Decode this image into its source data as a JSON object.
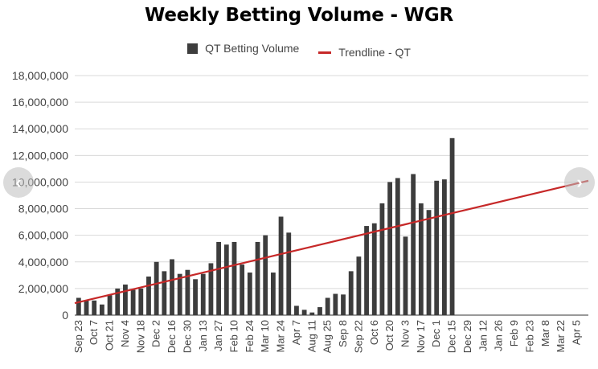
{
  "chart_data": {
    "type": "bar",
    "title": "Weekly Betting Volume - WGR",
    "legend": {
      "placement": "top",
      "entries": [
        {
          "name": "QT Betting Volume",
          "color": "#3d3d3d",
          "kind": "bar"
        },
        {
          "name": "Trendline - QT",
          "color": "#c62828",
          "kind": "line"
        }
      ]
    },
    "yticks": [
      "0",
      "2,000,000",
      "4,000,000",
      "6,000,000",
      "8,000,000",
      "10,000,000",
      "12,000,000",
      "14,000,000",
      "16,000,000",
      "18,000,000"
    ],
    "ylim": [
      0,
      18000000
    ],
    "grid": true,
    "x_tick_labels": [
      "Sep 23",
      "Oct 7",
      "Oct 21",
      "Nov 4",
      "Nov 18",
      "Dec 2",
      "Dec 16",
      "Dec 30",
      "Jan 13",
      "Jan 27",
      "Feb 10",
      "Feb 24",
      "Mar 10",
      "Mar 24",
      "Apr 7",
      "Aug 11",
      "Aug 25",
      "Sep 8",
      "Sep 22",
      "Oct 6",
      "Oct 20",
      "Nov 3",
      "Nov 17",
      "Dec 1",
      "Dec 15",
      "Dec 29",
      "Jan 12",
      "Jan 26",
      "Feb 9",
      "Feb 23",
      "Mar 8",
      "Mar 22",
      "Apr 5"
    ],
    "series": [
      {
        "name": "QT Betting Volume",
        "color": "#3d3d3d",
        "values": [
          1300000,
          1100000,
          1100000,
          800000,
          1500000,
          2000000,
          2300000,
          1900000,
          2000000,
          2900000,
          4000000,
          3300000,
          4200000,
          3100000,
          3400000,
          2700000,
          3100000,
          3900000,
          5500000,
          5300000,
          5500000,
          3800000,
          3200000,
          5500000,
          6000000,
          3200000,
          7400000,
          6200000,
          700000,
          400000,
          200000,
          600000,
          1300000,
          1600000,
          1550000,
          3300000,
          4400000,
          6700000,
          6900000,
          8400000,
          10000000,
          10300000,
          5900000,
          10600000,
          8400000,
          7900000,
          10100000,
          10200000,
          13300000,
          0,
          0,
          0,
          0,
          0,
          0,
          0,
          0,
          0,
          0,
          0,
          0,
          0,
          0,
          0,
          0,
          0
        ]
      },
      {
        "name": "Trendline - QT",
        "color": "#c62828",
        "type": "line",
        "start_value": 900000,
        "end_value": 10100000
      }
    ]
  },
  "nav": {
    "prev_icon": "‹",
    "next_icon": "›"
  }
}
